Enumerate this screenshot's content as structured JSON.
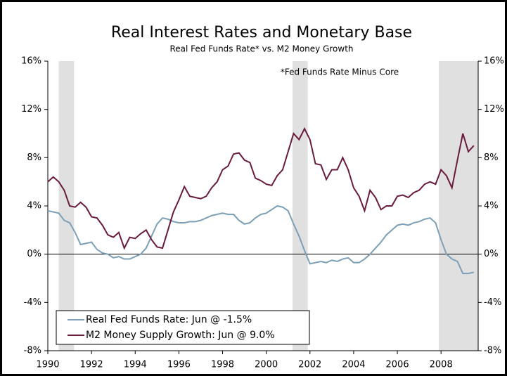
{
  "chart_data": {
    "type": "line",
    "title": "Real Interest Rates and Monetary Base",
    "subtitle": "Real Fed Funds Rate* vs. M2 Money Growth",
    "annotation": "*Fed Funds Rate Minus Core",
    "x": [
      1990,
      1990.25,
      1990.5,
      1990.75,
      1991,
      1991.25,
      1991.5,
      1991.75,
      1992,
      1992.25,
      1992.5,
      1992.75,
      1993,
      1993.25,
      1993.5,
      1993.75,
      1994,
      1994.25,
      1994.5,
      1994.75,
      1995,
      1995.25,
      1995.5,
      1995.75,
      1996,
      1996.25,
      1996.5,
      1996.75,
      1997,
      1997.25,
      1997.5,
      1997.75,
      1998,
      1998.25,
      1998.5,
      1998.75,
      1999,
      1999.25,
      1999.5,
      1999.75,
      2000,
      2000.25,
      2000.5,
      2000.75,
      2001,
      2001.25,
      2001.5,
      2001.75,
      2002,
      2002.25,
      2002.5,
      2002.75,
      2003,
      2003.25,
      2003.5,
      2003.75,
      2004,
      2004.25,
      2004.5,
      2004.75,
      2005,
      2005.25,
      2005.5,
      2005.75,
      2006,
      2006.25,
      2006.5,
      2006.75,
      2007,
      2007.25,
      2007.5,
      2007.75,
      2008,
      2008.25,
      2008.5,
      2008.75,
      2009,
      2009.25,
      2009.5
    ],
    "series": [
      {
        "name": "Real Fed Funds Rate: Jun @ -1.5%",
        "color": "#7b9fb6",
        "values": [
          3.6,
          3.5,
          3.4,
          2.8,
          2.6,
          1.8,
          0.8,
          0.9,
          1.0,
          0.4,
          0.1,
          0.0,
          -0.3,
          -0.2,
          -0.4,
          -0.4,
          -0.2,
          0.0,
          0.5,
          1.5,
          2.5,
          3.0,
          2.9,
          2.7,
          2.6,
          2.6,
          2.7,
          2.7,
          2.8,
          3.0,
          3.2,
          3.3,
          3.4,
          3.3,
          3.3,
          2.8,
          2.5,
          2.6,
          3.0,
          3.3,
          3.4,
          3.7,
          4.0,
          3.9,
          3.6,
          2.5,
          1.5,
          0.3,
          -0.8,
          -0.7,
          -0.6,
          -0.7,
          -0.5,
          -0.6,
          -0.4,
          -0.3,
          -0.7,
          -0.7,
          -0.4,
          0.0,
          0.5,
          1.0,
          1.6,
          2.0,
          2.4,
          2.5,
          2.4,
          2.6,
          2.7,
          2.9,
          3.0,
          2.6,
          1.2,
          0.0,
          -0.4,
          -0.6,
          -1.6,
          -1.6,
          -1.5
        ]
      },
      {
        "name": "M2 Money Supply Growth: Jun @ 9.0%",
        "color": "#6a1a3c",
        "axis": "y2",
        "values": [
          6.0,
          6.4,
          6.0,
          5.3,
          4.0,
          3.9,
          4.3,
          3.9,
          3.1,
          3.0,
          2.4,
          1.6,
          1.4,
          1.8,
          0.5,
          1.4,
          1.3,
          1.7,
          2.0,
          1.2,
          0.6,
          0.5,
          2.0,
          3.5,
          4.5,
          5.6,
          4.8,
          4.7,
          4.6,
          4.8,
          5.5,
          6.0,
          7.0,
          7.3,
          8.3,
          8.4,
          7.8,
          7.6,
          6.3,
          6.1,
          5.8,
          5.7,
          6.5,
          7.0,
          8.5,
          10.0,
          9.5,
          10.4,
          9.5,
          7.5,
          7.4,
          6.2,
          7.0,
          7.0,
          8.0,
          7.0,
          5.5,
          4.8,
          3.6,
          5.3,
          4.7,
          3.7,
          4.0,
          4.0,
          4.8,
          4.9,
          4.7,
          5.1,
          5.3,
          5.8,
          6.0,
          5.8,
          7.0,
          6.5,
          5.5,
          7.8,
          10.0,
          8.5,
          9.0
        ]
      }
    ],
    "recessions": [
      [
        1990.5,
        1991.2
      ],
      [
        2001.2,
        2001.9
      ],
      [
        2007.9,
        2009.7
      ]
    ],
    "xlim": [
      1990,
      2009.7
    ],
    "xticks": [
      1990,
      1992,
      1994,
      1996,
      1998,
      2000,
      2002,
      2004,
      2006,
      2008
    ],
    "ylim": [
      -8,
      16
    ],
    "yticks": [
      {
        "value": -8,
        "label": "-8%"
      },
      {
        "value": -4,
        "label": "-4%"
      },
      {
        "value": 0,
        "label": "0%"
      },
      {
        "value": 4,
        "label": "4%"
      },
      {
        "value": 8,
        "label": "8%"
      },
      {
        "value": 12,
        "label": "12%"
      },
      {
        "value": 16,
        "label": "16%"
      }
    ],
    "y2lim": [
      -8,
      16
    ],
    "y2ticks": [
      {
        "value": -8,
        "label": "-8%"
      },
      {
        "value": -4,
        "label": "-4%"
      },
      {
        "value": 0,
        "label": "0%"
      },
      {
        "value": 4,
        "label": "4%"
      },
      {
        "value": 8,
        "label": "8%"
      },
      {
        "value": 12,
        "label": "12%"
      },
      {
        "value": 16,
        "label": "16%"
      }
    ],
    "legend": "lower left"
  }
}
